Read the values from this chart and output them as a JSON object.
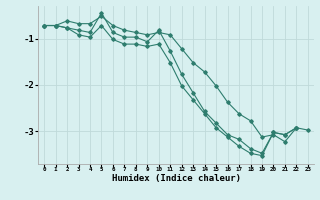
{
  "xlabel": "Humidex (Indice chaleur)",
  "bg_color": "#d8f0f0",
  "grid_color": "#c0dada",
  "line_color": "#2e7d6e",
  "xlim": [
    -0.5,
    23.5
  ],
  "ylim": [
    -3.7,
    -0.3
  ],
  "yticks": [
    -3,
    -2,
    -1
  ],
  "xticks": [
    0,
    1,
    2,
    3,
    4,
    5,
    6,
    7,
    8,
    9,
    10,
    11,
    12,
    13,
    14,
    15,
    16,
    17,
    18,
    19,
    20,
    21,
    22,
    23
  ],
  "series": [
    {
      "x": [
        0,
        1,
        2,
        3,
        4,
        5,
        6,
        7,
        8,
        9,
        10,
        11,
        12,
        13,
        14,
        15,
        16,
        17,
        18,
        19,
        20,
        21,
        22,
        23
      ],
      "y": [
        -0.72,
        -0.72,
        -0.62,
        -0.68,
        -0.68,
        -0.52,
        -0.72,
        -0.82,
        -0.87,
        -0.92,
        -0.87,
        -0.92,
        -1.22,
        -1.52,
        -1.72,
        -2.02,
        -2.37,
        -2.62,
        -2.77,
        -3.12,
        -3.07,
        -3.22,
        -2.92,
        -2.97
      ]
    },
    {
      "x": [
        0,
        1,
        2,
        3,
        4,
        5,
        6,
        7,
        8,
        9,
        10,
        11,
        12,
        13,
        14,
        15,
        16,
        17,
        18,
        19,
        20,
        21,
        22
      ],
      "y": [
        -0.72,
        -0.72,
        -0.77,
        -0.82,
        -0.87,
        -0.45,
        -0.87,
        -0.97,
        -0.97,
        -1.07,
        -0.82,
        -1.27,
        -1.77,
        -2.17,
        -2.57,
        -2.82,
        -3.07,
        -3.17,
        -3.37,
        -3.47,
        -3.02,
        -3.07,
        -2.92
      ]
    },
    {
      "x": [
        0,
        1,
        2,
        3,
        4,
        5,
        6,
        7,
        8,
        9,
        10,
        11,
        12,
        13,
        14,
        15,
        16,
        17,
        18,
        19,
        20,
        21,
        22
      ],
      "y": [
        -0.72,
        -0.72,
        -0.77,
        -0.92,
        -0.97,
        -0.72,
        -1.02,
        -1.12,
        -1.12,
        -1.17,
        -1.12,
        -1.52,
        -2.02,
        -2.32,
        -2.62,
        -2.92,
        -3.12,
        -3.32,
        -3.47,
        -3.52,
        -3.02,
        -3.07,
        -2.92
      ]
    }
  ]
}
